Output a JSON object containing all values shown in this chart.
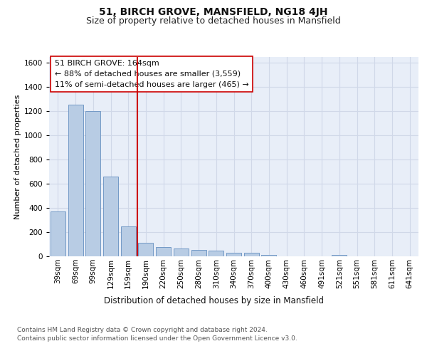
{
  "title": "51, BIRCH GROVE, MANSFIELD, NG18 4JH",
  "subtitle": "Size of property relative to detached houses in Mansfield",
  "xlabel": "Distribution of detached houses by size in Mansfield",
  "ylabel": "Number of detached properties",
  "footer_line1": "Contains HM Land Registry data © Crown copyright and database right 2024.",
  "footer_line2": "Contains public sector information licensed under the Open Government Licence v3.0.",
  "bar_labels": [
    "39sqm",
    "69sqm",
    "99sqm",
    "129sqm",
    "159sqm",
    "190sqm",
    "220sqm",
    "250sqm",
    "280sqm",
    "310sqm",
    "340sqm",
    "370sqm",
    "400sqm",
    "430sqm",
    "460sqm",
    "491sqm",
    "521sqm",
    "551sqm",
    "581sqm",
    "611sqm",
    "641sqm"
  ],
  "bar_values": [
    370,
    1255,
    1200,
    660,
    250,
    110,
    78,
    65,
    53,
    50,
    28,
    28,
    10,
    0,
    0,
    0,
    10,
    0,
    0,
    0,
    0
  ],
  "bar_color": "#b8cce4",
  "bar_edge_color": "#7399c6",
  "grid_color": "#d0d8e8",
  "background_color": "#e8eef8",
  "red_line_x": 4.5,
  "annotation_line1": "51 BIRCH GROVE: 164sqm",
  "annotation_line2": "← 88% of detached houses are smaller (3,559)",
  "annotation_line3": "11% of semi-detached houses are larger (465) →",
  "red_line_color": "#cc0000",
  "ylim": [
    0,
    1650
  ],
  "title_fontsize": 10,
  "subtitle_fontsize": 9,
  "annotation_fontsize": 8,
  "tick_fontsize": 7.5,
  "ylabel_fontsize": 8,
  "xlabel_fontsize": 8.5,
  "footer_fontsize": 6.5
}
